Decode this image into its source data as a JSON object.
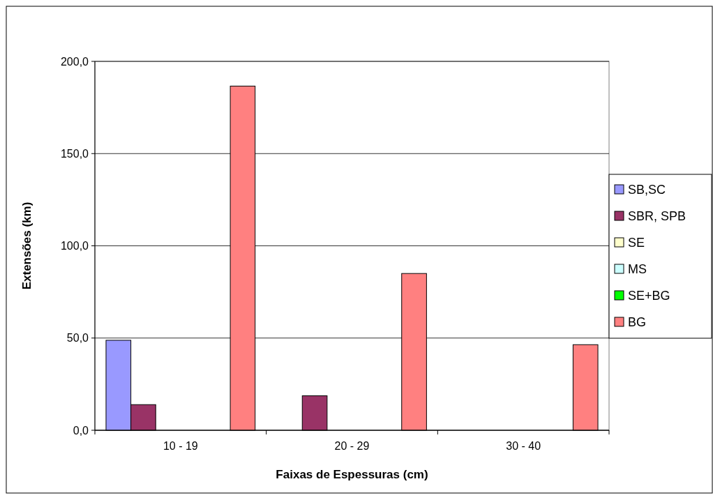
{
  "chart_data": {
    "type": "bar",
    "xlabel": "Faixas de Espessuras (cm)",
    "ylabel": "Extensões (km)",
    "categories": [
      "10 - 19",
      "20 - 29",
      "30 - 40"
    ],
    "series": [
      {
        "name": "SB,SC",
        "color": "#9999ff",
        "values": [
          48.8,
          0,
          0
        ]
      },
      {
        "name": "SBR, SPB",
        "color": "#993366",
        "values": [
          13.9,
          18.7,
          0
        ]
      },
      {
        "name": "SE",
        "color": "#ffffcc",
        "values": [
          0,
          0,
          0
        ]
      },
      {
        "name": "MS",
        "color": "#ccffff",
        "values": [
          0,
          0,
          0
        ]
      },
      {
        "name": "SE+BG",
        "color": "#00ff00",
        "values": [
          0,
          0,
          0
        ]
      },
      {
        "name": "BG",
        "color": "#ff8080",
        "values": [
          186.6,
          85.0,
          46.4
        ]
      }
    ],
    "ylim": [
      0,
      200
    ],
    "yticks": [
      {
        "value": 0,
        "label": "0,0"
      },
      {
        "value": 50,
        "label": "50,0"
      },
      {
        "value": 100,
        "label": "100,0"
      },
      {
        "value": 150,
        "label": "150,0"
      },
      {
        "value": 200,
        "label": "200,0"
      }
    ],
    "grid": "y",
    "legend": "right"
  }
}
